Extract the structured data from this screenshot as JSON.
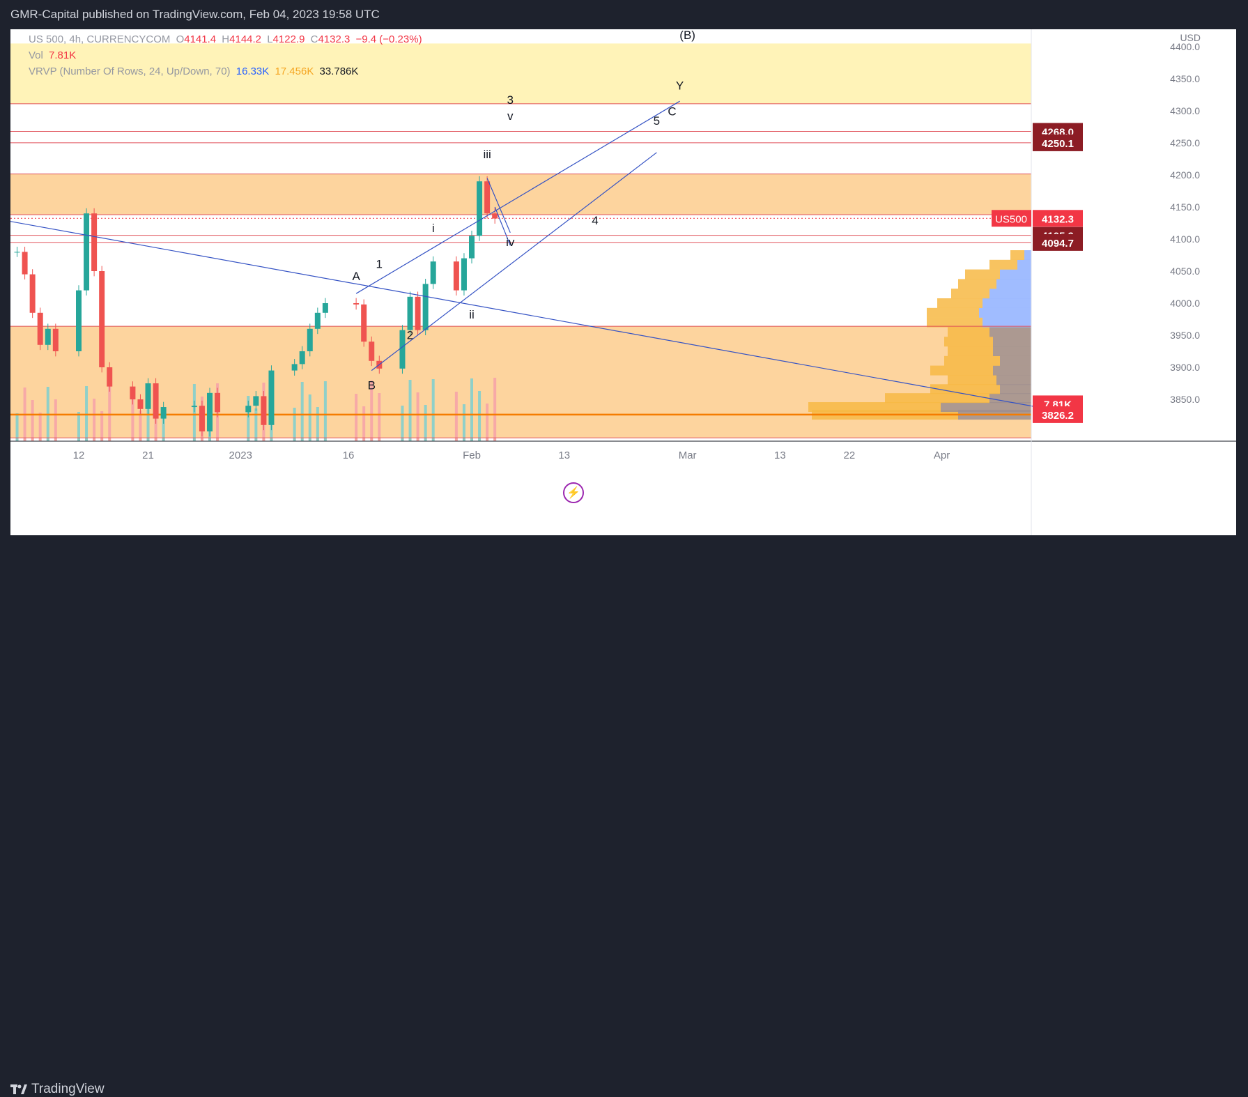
{
  "header": {
    "publisher_line": "GMR-Capital published on TradingView.com, Feb 04, 2023 19:58 UTC"
  },
  "footer": {
    "brand": "TradingView"
  },
  "legend": {
    "symbol": "US 500, 4h, CURRENCYCOM",
    "o_label": "O",
    "o_value": "4141.4",
    "h_label": "H",
    "h_value": "4144.2",
    "l_label": "L",
    "l_value": "4122.9",
    "c_label": "C",
    "c_value": "4132.3",
    "change": "−9.4 (−0.23%)",
    "vol_label": "Vol",
    "vol_value": "7.81K",
    "vrvp_label": "VRVP (Number Of Rows, 24, Up/Down, 70)",
    "vrvp_up": "16.33K",
    "vrvp_down": "17.456K",
    "vrvp_total": "33.786K"
  },
  "colors": {
    "up": "#26a69a",
    "down": "#ef5350",
    "zone_orange": "#fdd49e",
    "zone_yellow": "#fff3b8",
    "level_line": "#e0525a",
    "trend_line": "#3452c4",
    "price_tag": "#f23645",
    "dark_tag": "#8c1c24",
    "volume_up": "#8fd0c9",
    "volume_down": "#f7a9a7"
  },
  "chart_data": {
    "type": "line",
    "title": "",
    "xlabel": "",
    "ylabel": "",
    "currency": "USD",
    "ylim": [
      3780,
      4420
    ],
    "x_ticks": [
      {
        "label": "12",
        "date": "2022-12-12"
      },
      {
        "label": "21",
        "date": "2022-12-21"
      },
      {
        "label": "2023",
        "date": "2023-01-02"
      },
      {
        "label": "16",
        "date": "2023-01-16"
      },
      {
        "label": "Feb",
        "date": "2023-02-01"
      },
      {
        "label": "13",
        "date": "2023-02-13"
      },
      {
        "label": "Mar",
        "date": "2023-03-01"
      },
      {
        "label": "13",
        "date": "2023-03-13"
      },
      {
        "label": "22",
        "date": "2023-03-22"
      },
      {
        "label": "Apr",
        "date": "2023-04-03"
      }
    ],
    "y_ticks": [
      3850,
      3900,
      3950,
      4000,
      4050,
      4100,
      4150,
      4200,
      4250,
      4300,
      4350,
      4400
    ],
    "price_series": {
      "name": "US 500",
      "x": [
        "2022-12-04",
        "2022-12-05",
        "2022-12-06",
        "2022-12-07",
        "2022-12-08",
        "2022-12-09",
        "2022-12-12",
        "2022-12-13",
        "2022-12-14",
        "2022-12-15",
        "2022-12-16",
        "2022-12-19",
        "2022-12-20",
        "2022-12-21",
        "2022-12-22",
        "2022-12-23",
        "2022-12-27",
        "2022-12-28",
        "2022-12-29",
        "2022-12-30",
        "2023-01-03",
        "2023-01-04",
        "2023-01-05",
        "2023-01-06",
        "2023-01-09",
        "2023-01-10",
        "2023-01-11",
        "2023-01-12",
        "2023-01-13",
        "2023-01-17",
        "2023-01-18",
        "2023-01-19",
        "2023-01-20",
        "2023-01-23",
        "2023-01-24",
        "2023-01-25",
        "2023-01-26",
        "2023-01-27",
        "2023-01-30",
        "2023-01-31",
        "2023-02-01",
        "2023-02-02",
        "2023-02-03",
        "2023-02-04"
      ],
      "y": [
        4080,
        4045,
        3985,
        3935,
        3960,
        3925,
        4020,
        4140,
        4050,
        3900,
        3870,
        3850,
        3835,
        3875,
        3820,
        3838,
        3840,
        3800,
        3860,
        3830,
        3840,
        3855,
        3810,
        3895,
        3905,
        3925,
        3960,
        3985,
        4000,
        3998,
        3940,
        3910,
        3898,
        3958,
        4010,
        3958,
        4030,
        4065,
        4020,
        4070,
        4105,
        4190,
        4140,
        4132
      ]
    },
    "horizontal_levels": [
      4311,
      4268,
      4250.1,
      4201.5,
      4138,
      4105.9,
      4094.7,
      3964,
      3826.2,
      3790
    ],
    "zones": [
      {
        "name": "yellow",
        "from": 4311,
        "to": 4405
      },
      {
        "name": "orange-upper",
        "from": 4138,
        "to": 4201.5
      },
      {
        "name": "orange-lower",
        "from": 3790,
        "to": 3964
      }
    ],
    "price_tags": [
      {
        "value": "4268.0"
      },
      {
        "value": "4250.1"
      },
      {
        "label": "US500",
        "value": "4132.3"
      },
      {
        "value": "4105.9"
      },
      {
        "value": "4094.7"
      },
      {
        "value": "7.81K"
      },
      {
        "value": "3826.2"
      }
    ],
    "wave_labels": [
      {
        "text": "(B)",
        "date": "2023-03-01",
        "price": 4412
      },
      {
        "text": "Y",
        "date": "2023-02-28",
        "price": 4333
      },
      {
        "text": "C",
        "date": "2023-02-27",
        "price": 4293
      },
      {
        "text": "3",
        "date": "2023-02-06",
        "price": 4311
      },
      {
        "text": "v",
        "date": "2023-02-06",
        "price": 4286
      },
      {
        "text": "5",
        "date": "2023-02-25",
        "price": 4278
      },
      {
        "text": "iii",
        "date": "2023-02-03",
        "price": 4226
      },
      {
        "text": "i",
        "date": "2023-01-27",
        "price": 4111
      },
      {
        "text": "iv",
        "date": "2023-02-06",
        "price": 4089
      },
      {
        "text": "4",
        "date": "2023-02-17",
        "price": 4123
      },
      {
        "text": "A",
        "date": "2023-01-17",
        "price": 4036
      },
      {
        "text": "1",
        "date": "2023-01-20",
        "price": 4055
      },
      {
        "text": "ii",
        "date": "2023-02-01",
        "price": 3976
      },
      {
        "text": "2",
        "date": "2023-01-24",
        "price": 3944
      },
      {
        "text": "B",
        "date": "2023-01-19",
        "price": 3866
      }
    ]
  }
}
